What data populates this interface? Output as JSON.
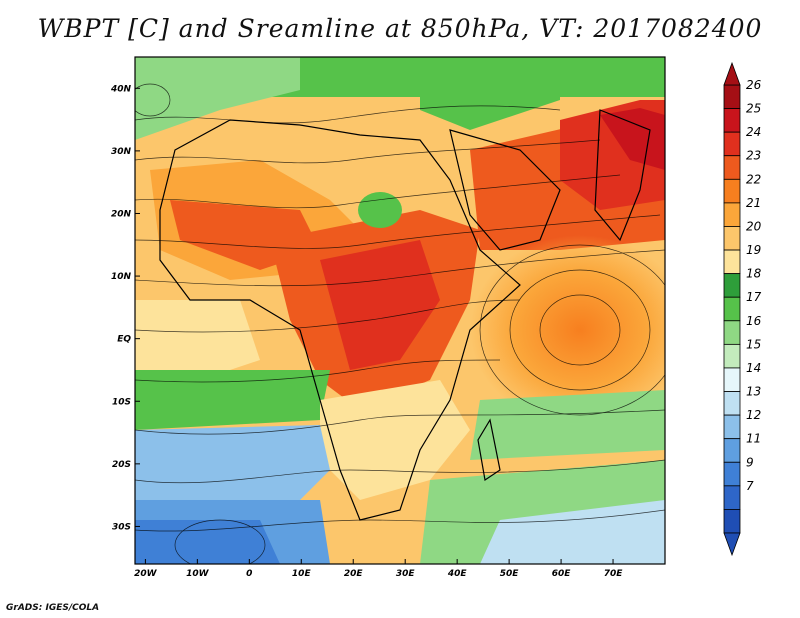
{
  "title": "WBPT [C] and Sreamline at 850hPa, VT: 2017082400",
  "credit": "GrADS: IGES/COLA",
  "axes": {
    "lat_labels": [
      "40N",
      "30N",
      "20N",
      "10N",
      "EQ",
      "10S",
      "20S",
      "30S"
    ],
    "lat_values": [
      40,
      30,
      20,
      10,
      0,
      -10,
      -20,
      -30
    ],
    "lon_labels": [
      "20W",
      "10W",
      "0",
      "10E",
      "20E",
      "30E",
      "40E",
      "50E",
      "60E",
      "70E"
    ],
    "lon_values": [
      -20,
      -10,
      0,
      10,
      20,
      30,
      40,
      50,
      60,
      70
    ],
    "lon_range": [
      -22,
      80
    ],
    "lat_range": [
      -36,
      45
    ]
  },
  "colorbar": {
    "labels": [
      "26",
      "25",
      "24",
      "23",
      "22",
      "21",
      "20",
      "19",
      "18",
      "17",
      "16",
      "15",
      "14",
      "13",
      "12",
      "11",
      "9",
      "7"
    ],
    "colors": [
      "#a50f15",
      "#c8141c",
      "#e0301e",
      "#ee5a1e",
      "#f77f1f",
      "#fba63a",
      "#fcc66b",
      "#fde39b",
      "#2e9e3a",
      "#56c24a",
      "#8fd884",
      "#c3ecbd",
      "#e6f7fb",
      "#bfe0f2",
      "#8cc0ea",
      "#5f9fe0",
      "#3f80d6",
      "#2e66c8",
      "#1f4eb4"
    ]
  }
}
